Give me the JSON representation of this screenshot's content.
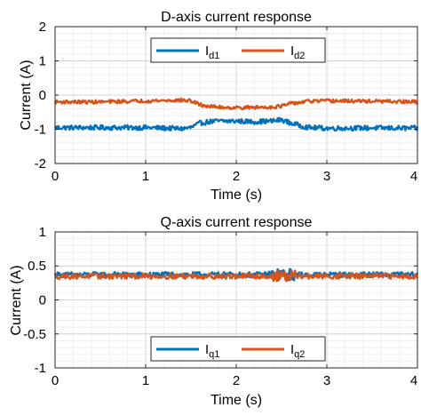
{
  "chart_data": [
    {
      "type": "line",
      "title": "D-axis current response",
      "xlabel": "Time (s)",
      "ylabel": "Current (A)",
      "xlim": [
        0,
        4
      ],
      "ylim": [
        -2,
        2
      ],
      "xticks": [
        0,
        1,
        2,
        3,
        4
      ],
      "yticks": [
        -2,
        -1,
        0,
        1,
        2
      ],
      "grid": "on (major and minor)",
      "legend_placement": "top-center, horizontal",
      "series": [
        {
          "name": "Id1",
          "label_main": "I",
          "label_sub": "d1",
          "color": "#0072BD",
          "noise_amplitude": 0.07,
          "x": [
            0,
            0.5,
            1.0,
            1.4,
            1.5,
            1.6,
            1.7,
            1.8,
            2.0,
            2.2,
            2.4,
            2.5,
            2.6,
            2.8,
            3.0,
            3.5,
            4.0
          ],
          "values": [
            -0.95,
            -0.95,
            -0.95,
            -0.98,
            -0.95,
            -0.82,
            -0.78,
            -0.76,
            -0.76,
            -0.78,
            -0.76,
            -0.72,
            -0.82,
            -0.95,
            -0.97,
            -0.96,
            -0.97
          ]
        },
        {
          "name": "Id2",
          "label_main": "I",
          "label_sub": "d2",
          "color": "#D95319",
          "noise_amplitude": 0.05,
          "x": [
            0,
            0.5,
            1.0,
            1.4,
            1.5,
            1.6,
            1.7,
            1.8,
            2.0,
            2.2,
            2.4,
            2.5,
            2.6,
            2.8,
            3.0,
            3.5,
            4.0
          ],
          "values": [
            -0.2,
            -0.2,
            -0.17,
            -0.15,
            -0.17,
            -0.28,
            -0.33,
            -0.35,
            -0.37,
            -0.36,
            -0.35,
            -0.32,
            -0.25,
            -0.18,
            -0.17,
            -0.18,
            -0.2
          ]
        }
      ]
    },
    {
      "type": "line",
      "title": "Q-axis current response",
      "xlabel": "Time (s)",
      "ylabel": "Current (A)",
      "xlim": [
        0,
        4
      ],
      "ylim": [
        -1,
        1
      ],
      "xticks": [
        0,
        1,
        2,
        3,
        4
      ],
      "yticks": [
        -1,
        -0.5,
        0,
        0.5,
        1
      ],
      "grid": "on (major and minor)",
      "legend_placement": "bottom-center, horizontal",
      "series": [
        {
          "name": "Iq1",
          "label_main": "I",
          "label_sub": "q1",
          "color": "#0072BD",
          "noise_amplitude": 0.04,
          "x": [
            0,
            1,
            2,
            2.5,
            3,
            4
          ],
          "values": [
            0.37,
            0.37,
            0.37,
            0.37,
            0.37,
            0.37
          ]
        },
        {
          "name": "Iq2",
          "label_main": "I",
          "label_sub": "q2",
          "color": "#D95319",
          "noise_amplitude": 0.04,
          "x": [
            0,
            1,
            2,
            2.5,
            3,
            4
          ],
          "values": [
            0.35,
            0.35,
            0.35,
            0.35,
            0.35,
            0.35
          ]
        }
      ]
    }
  ]
}
